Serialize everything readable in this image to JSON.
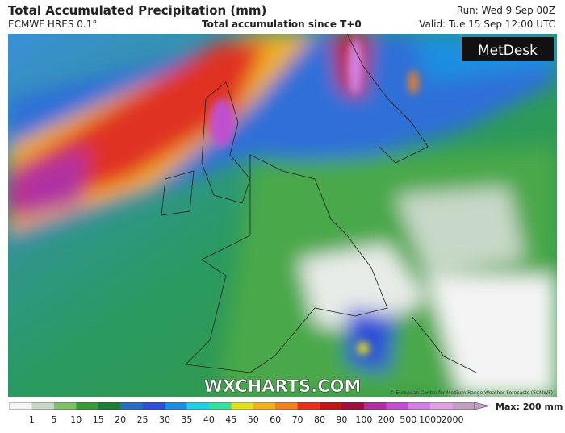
{
  "header": {
    "title": "Total Accumulated Precipitation (mm)",
    "model": "ECMWF HRES 0.1°",
    "subtitle": "Total accumulation since T+0",
    "run": "Run: Wed 9 Sep 00Z",
    "valid": "Valid: Tue 15 Sep 12:00 UTC"
  },
  "map": {
    "logo": "MetDesk",
    "watermark": "WXCHARTS.COM",
    "credit": "© European Centre for Medium-Range Weather Forecasts (ECMWF)"
  },
  "colorbar": {
    "ticks": [
      "1",
      "5",
      "10",
      "15",
      "20",
      "25",
      "30",
      "35",
      "40",
      "45",
      "50",
      "60",
      "70",
      "80",
      "90",
      "100",
      "200",
      "500",
      "1000",
      "2000"
    ],
    "colors": [
      "#f4f4f4",
      "#c8d8c8",
      "#7fbf6a",
      "#3a9a3a",
      "#1f7d3c",
      "#2a6fbf",
      "#2f4fd8",
      "#1e8fe0",
      "#1fd0e0",
      "#33e0a0",
      "#e0e020",
      "#f0b020",
      "#f08020",
      "#e83020",
      "#c01818",
      "#a01040",
      "#b030a0",
      "#c050d0",
      "#d080e0",
      "#e0a0e0",
      "#c0a0c0"
    ],
    "max": "Max: 200 mm"
  }
}
